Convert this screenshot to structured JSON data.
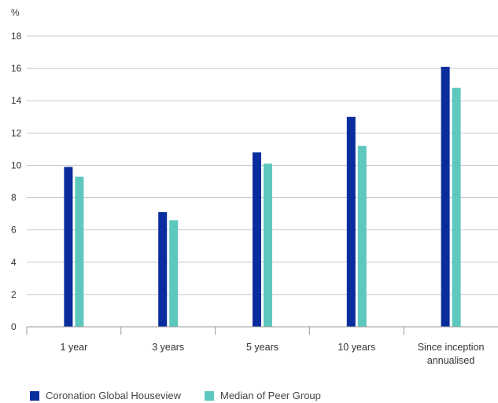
{
  "chart_data": {
    "type": "bar",
    "title": "",
    "xlabel": "",
    "ylabel": "%",
    "ylim": [
      0,
      18
    ],
    "yticks": [
      0,
      2,
      4,
      6,
      8,
      10,
      12,
      14,
      16,
      18
    ],
    "grid": true,
    "legend_position": "bottom-left",
    "categories": [
      "1 year",
      "3 years",
      "5 years",
      "10 years",
      "Since inception annualised"
    ],
    "category_lines": [
      [
        "1 year"
      ],
      [
        "3 years"
      ],
      [
        "5 years"
      ],
      [
        "10 years"
      ],
      [
        "Since inception",
        "annualised"
      ]
    ],
    "series": [
      {
        "name": "Coronation Global Houseview",
        "color": "#0a2d9e",
        "values": [
          9.9,
          7.1,
          10.8,
          13.0,
          16.1
        ]
      },
      {
        "name": "Median of Peer Group",
        "color": "#5ec8be",
        "values": [
          9.3,
          6.6,
          10.1,
          11.2,
          14.8
        ]
      }
    ]
  }
}
